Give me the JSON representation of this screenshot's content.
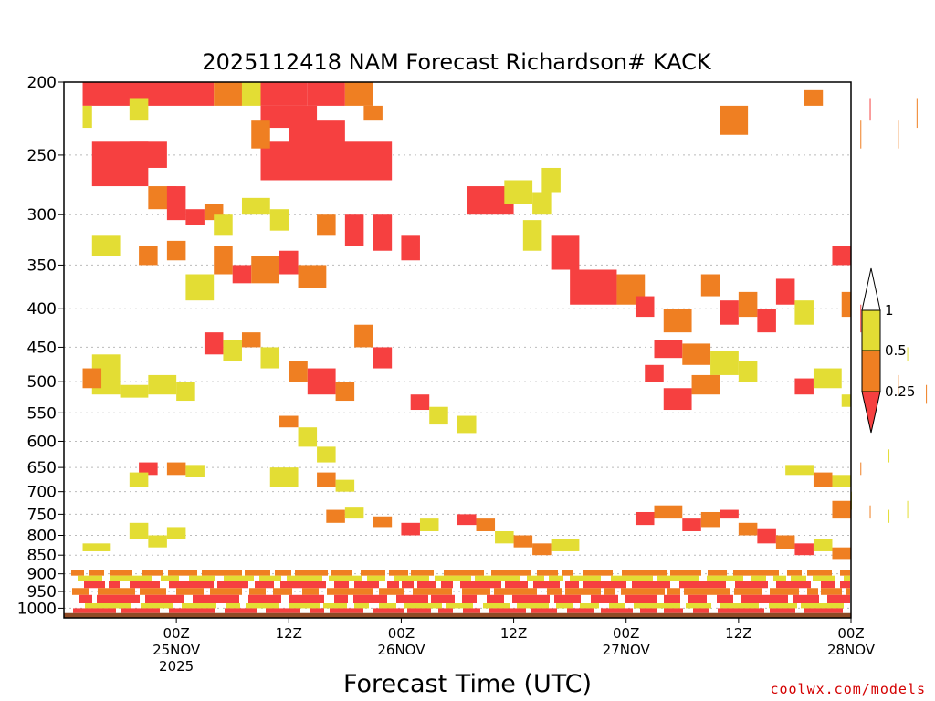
{
  "chart_data": {
    "type": "heatmap",
    "title": "2025112418 NAM Forecast Richardson# KACK",
    "xlabel": "Forecast Time (UTC)",
    "ylabel": "",
    "credit": "coolwx.com/models",
    "x_unit": "forecast hour",
    "x_range": [
      -6,
      78
    ],
    "y_range": [
      1030,
      200
    ],
    "y_ticks": [
      200,
      250,
      300,
      350,
      400,
      450,
      500,
      550,
      600,
      650,
      700,
      750,
      800,
      850,
      900,
      950,
      1000
    ],
    "x_ticks": [
      {
        "hour": 6,
        "lines": [
          "00Z",
          "25NOV",
          "2025"
        ]
      },
      {
        "hour": 18,
        "lines": [
          "12Z"
        ]
      },
      {
        "hour": 30,
        "lines": [
          "00Z",
          "26NOV"
        ]
      },
      {
        "hour": 42,
        "lines": [
          "12Z"
        ]
      },
      {
        "hour": 54,
        "lines": [
          "00Z",
          "27NOV"
        ]
      },
      {
        "hour": 66,
        "lines": [
          "12Z"
        ]
      },
      {
        "hour": 78,
        "lines": [
          "00Z",
          "28NOV"
        ]
      }
    ],
    "colorbar": {
      "labels": [
        "1",
        "0.5",
        "0.25"
      ],
      "levels": [
        {
          "range": "0.5-1",
          "color": "#e3dd34"
        },
        {
          "range": "0.25-0.5",
          "color": "#ef7f22"
        },
        {
          "range": "<0.25",
          "color": "#f64040"
        }
      ],
      "above_color": "#ffffff"
    },
    "colors": {
      "red": "#f64040",
      "orange": "#ef7f22",
      "yellow": "#e3dd34",
      "ground": "#8f4a25",
      "grid": "#bbbbbb"
    },
    "ground_pressure": 1015,
    "cells_note_keys": [
      "hour_start",
      "hour_end",
      "p_top",
      "p_bottom",
      "category"
    ],
    "cells": [
      [
        -4,
        10,
        200,
        215,
        "red"
      ],
      [
        10,
        13,
        200,
        215,
        "orange"
      ],
      [
        13,
        15,
        200,
        215,
        "yellow"
      ],
      [
        15,
        20,
        200,
        215,
        "red"
      ],
      [
        20,
        24,
        200,
        215,
        "red"
      ],
      [
        24,
        27,
        200,
        215,
        "orange"
      ],
      [
        -4,
        -3,
        215,
        230,
        "yellow"
      ],
      [
        1,
        3,
        210,
        225,
        "yellow"
      ],
      [
        15,
        21,
        215,
        230,
        "red"
      ],
      [
        26,
        28,
        215,
        225,
        "orange"
      ],
      [
        -3,
        3,
        240,
        275,
        "red"
      ],
      [
        1,
        5,
        240,
        260,
        "red"
      ],
      [
        15,
        29,
        240,
        270,
        "red"
      ],
      [
        18,
        24,
        225,
        245,
        "red"
      ],
      [
        14,
        16,
        225,
        245,
        "orange"
      ],
      [
        3,
        6,
        275,
        295,
        "orange"
      ],
      [
        5,
        7,
        275,
        305,
        "red"
      ],
      [
        7,
        9,
        295,
        310,
        "red"
      ],
      [
        9,
        11,
        290,
        305,
        "orange"
      ],
      [
        13,
        16,
        285,
        300,
        "yellow"
      ],
      [
        -3,
        0,
        320,
        340,
        "yellow"
      ],
      [
        2,
        4,
        330,
        350,
        "orange"
      ],
      [
        10,
        12,
        330,
        360,
        "orange"
      ],
      [
        12,
        14,
        350,
        370,
        "red"
      ],
      [
        14,
        17,
        340,
        370,
        "orange"
      ],
      [
        17,
        19,
        335,
        360,
        "red"
      ],
      [
        19,
        22,
        350,
        375,
        "orange"
      ],
      [
        7,
        10,
        360,
        390,
        "yellow"
      ],
      [
        5,
        7,
        325,
        345,
        "orange"
      ],
      [
        24,
        26,
        300,
        330,
        "red"
      ],
      [
        27,
        29,
        300,
        335,
        "red"
      ],
      [
        30,
        32,
        320,
        345,
        "red"
      ],
      [
        21,
        23,
        300,
        320,
        "orange"
      ],
      [
        16,
        18,
        295,
        315,
        "yellow"
      ],
      [
        10,
        12,
        300,
        320,
        "yellow"
      ],
      [
        37,
        42,
        275,
        300,
        "red"
      ],
      [
        41,
        44,
        270,
        290,
        "yellow"
      ],
      [
        44,
        46,
        280,
        300,
        "yellow"
      ],
      [
        45,
        47,
        260,
        280,
        "yellow"
      ],
      [
        43,
        45,
        305,
        335,
        "yellow"
      ],
      [
        46,
        49,
        320,
        355,
        "red"
      ],
      [
        48,
        53,
        355,
        395,
        "red"
      ],
      [
        53,
        56,
        360,
        395,
        "orange"
      ],
      [
        55,
        57,
        385,
        410,
        "red"
      ],
      [
        58,
        61,
        400,
        430,
        "orange"
      ],
      [
        62,
        64,
        360,
        385,
        "orange"
      ],
      [
        64,
        66,
        390,
        420,
        "red"
      ],
      [
        66,
        68,
        380,
        410,
        "orange"
      ],
      [
        68,
        70,
        400,
        430,
        "red"
      ],
      [
        70,
        72,
        365,
        395,
        "red"
      ],
      [
        72,
        74,
        390,
        420,
        "yellow"
      ],
      [
        77,
        79,
        380,
        410,
        "orange"
      ],
      [
        79,
        81,
        395,
        430,
        "red"
      ],
      [
        81,
        84,
        400,
        430,
        "orange"
      ],
      [
        76,
        78,
        330,
        350,
        "red"
      ],
      [
        79,
        82,
        225,
        245,
        "orange"
      ],
      [
        83,
        85,
        225,
        245,
        "orange"
      ],
      [
        80,
        82,
        210,
        225,
        "red"
      ],
      [
        85,
        87,
        210,
        230,
        "orange"
      ],
      [
        73,
        75,
        205,
        215,
        "orange"
      ],
      [
        64,
        67,
        215,
        235,
        "orange"
      ],
      [
        57,
        60,
        440,
        465,
        "red"
      ],
      [
        60,
        63,
        445,
        475,
        "orange"
      ],
      [
        63,
        66,
        455,
        490,
        "yellow"
      ],
      [
        56,
        58,
        475,
        500,
        "red"
      ],
      [
        58,
        61,
        510,
        545,
        "red"
      ],
      [
        61,
        64,
        490,
        520,
        "orange"
      ],
      [
        66,
        68,
        470,
        500,
        "yellow"
      ],
      [
        72,
        74,
        495,
        520,
        "red"
      ],
      [
        74,
        77,
        480,
        510,
        "yellow"
      ],
      [
        80,
        83,
        470,
        500,
        "red"
      ],
      [
        83,
        86,
        490,
        520,
        "orange"
      ],
      [
        86,
        88,
        505,
        535,
        "orange"
      ],
      [
        84,
        86,
        450,
        470,
        "yellow"
      ],
      [
        77,
        79,
        520,
        540,
        "yellow"
      ],
      [
        9,
        11,
        430,
        460,
        "red"
      ],
      [
        11,
        13,
        440,
        470,
        "yellow"
      ],
      [
        13,
        15,
        430,
        450,
        "orange"
      ],
      [
        15,
        17,
        450,
        480,
        "yellow"
      ],
      [
        18,
        20,
        470,
        500,
        "orange"
      ],
      [
        20,
        23,
        480,
        520,
        "red"
      ],
      [
        23,
        25,
        500,
        530,
        "orange"
      ],
      [
        25,
        27,
        420,
        450,
        "orange"
      ],
      [
        27,
        29,
        450,
        480,
        "red"
      ],
      [
        -3,
        0,
        460,
        520,
        "yellow"
      ],
      [
        -4,
        -2,
        480,
        510,
        "orange"
      ],
      [
        0,
        3,
        505,
        525,
        "yellow"
      ],
      [
        3,
        6,
        490,
        520,
        "yellow"
      ],
      [
        6,
        8,
        500,
        530,
        "yellow"
      ],
      [
        31,
        33,
        520,
        545,
        "red"
      ],
      [
        33,
        35,
        540,
        570,
        "yellow"
      ],
      [
        36,
        38,
        555,
        585,
        "yellow"
      ],
      [
        17,
        19,
        555,
        575,
        "orange"
      ],
      [
        19,
        21,
        575,
        610,
        "yellow"
      ],
      [
        21,
        23,
        610,
        640,
        "yellow"
      ],
      [
        2,
        4,
        640,
        665,
        "red"
      ],
      [
        5,
        7,
        640,
        665,
        "orange"
      ],
      [
        7,
        9,
        645,
        670,
        "yellow"
      ],
      [
        1,
        3,
        660,
        690,
        "yellow"
      ],
      [
        16,
        19,
        650,
        690,
        "yellow"
      ],
      [
        21,
        23,
        660,
        690,
        "orange"
      ],
      [
        23,
        25,
        675,
        700,
        "yellow"
      ],
      [
        76,
        79,
        665,
        690,
        "yellow"
      ],
      [
        79,
        82,
        640,
        665,
        "orange"
      ],
      [
        82,
        84,
        615,
        640,
        "yellow"
      ],
      [
        71,
        74,
        645,
        665,
        "yellow"
      ],
      [
        74,
        76,
        660,
        690,
        "orange"
      ],
      [
        76,
        78,
        720,
        760,
        "orange"
      ],
      [
        78,
        80,
        700,
        740,
        "yellow"
      ],
      [
        80,
        82,
        730,
        760,
        "orange"
      ],
      [
        82,
        84,
        740,
        770,
        "yellow"
      ],
      [
        84,
        87,
        720,
        760,
        "yellow"
      ],
      [
        87,
        89,
        760,
        800,
        "yellow"
      ],
      [
        87,
        89,
        780,
        810,
        "yellow"
      ],
      [
        55,
        57,
        745,
        775,
        "red"
      ],
      [
        57,
        60,
        730,
        760,
        "orange"
      ],
      [
        60,
        62,
        760,
        790,
        "red"
      ],
      [
        62,
        64,
        745,
        780,
        "orange"
      ],
      [
        64,
        66,
        740,
        760,
        "red"
      ],
      [
        66,
        68,
        770,
        800,
        "orange"
      ],
      [
        68,
        70,
        785,
        820,
        "red"
      ],
      [
        70,
        72,
        800,
        835,
        "orange"
      ],
      [
        72,
        74,
        820,
        850,
        "red"
      ],
      [
        74,
        76,
        810,
        840,
        "yellow"
      ],
      [
        76,
        78,
        830,
        860,
        "orange"
      ],
      [
        36,
        38,
        750,
        775,
        "red"
      ],
      [
        38,
        40,
        760,
        790,
        "orange"
      ],
      [
        40,
        42,
        790,
        820,
        "yellow"
      ],
      [
        42,
        44,
        800,
        830,
        "orange"
      ],
      [
        32,
        34,
        760,
        790,
        "yellow"
      ],
      [
        -4,
        -1,
        820,
        840,
        "yellow"
      ],
      [
        1,
        3,
        770,
        810,
        "yellow"
      ],
      [
        3,
        5,
        800,
        830,
        "yellow"
      ],
      [
        5,
        7,
        780,
        810,
        "yellow"
      ],
      [
        22,
        24,
        740,
        770,
        "orange"
      ],
      [
        24,
        26,
        735,
        760,
        "yellow"
      ],
      [
        27,
        29,
        755,
        780,
        "orange"
      ],
      [
        30,
        32,
        770,
        800,
        "red"
      ],
      [
        44,
        46,
        820,
        850,
        "orange"
      ],
      [
        46,
        49,
        810,
        840,
        "yellow"
      ]
    ],
    "pbl_bands": [
      {
        "p_top": 890,
        "p_bottom": 905,
        "category": "orange"
      },
      {
        "p_top": 905,
        "p_bottom": 920,
        "category": "yellow"
      },
      {
        "p_top": 920,
        "p_bottom": 940,
        "category": "red"
      },
      {
        "p_top": 940,
        "p_bottom": 960,
        "category": "orange"
      },
      {
        "p_top": 960,
        "p_bottom": 985,
        "category": "red"
      },
      {
        "p_top": 985,
        "p_bottom": 1000,
        "category": "yellow"
      },
      {
        "p_top": 1000,
        "p_bottom": 1015,
        "category": "red"
      }
    ]
  }
}
